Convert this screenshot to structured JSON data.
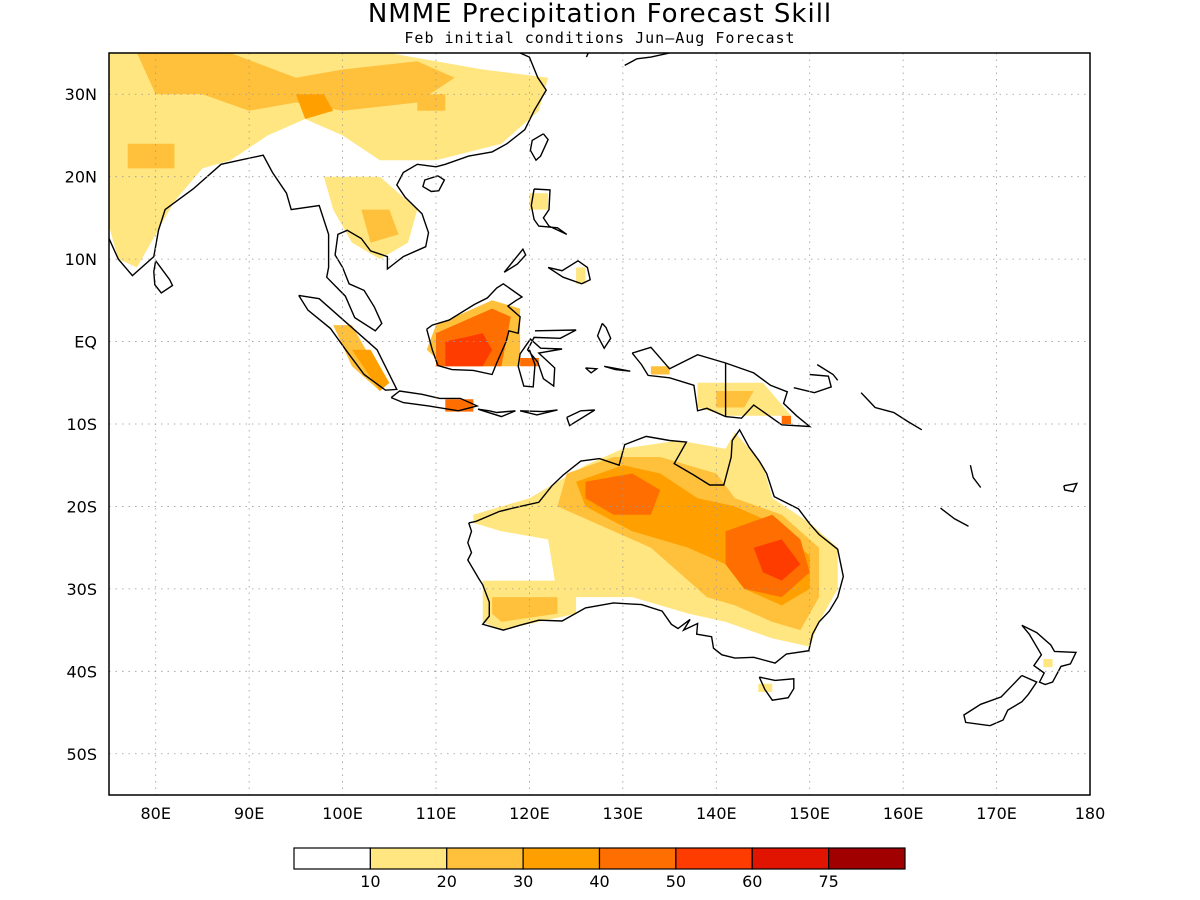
{
  "title": "NMME Precipitation Forecast Skill",
  "subtitle": "Feb initial conditions  Jun–Aug Forecast",
  "map": {
    "lon_range": [
      75,
      180
    ],
    "lat_range": [
      -55,
      35
    ],
    "lat_ticks": [
      {
        "value": 30,
        "label": "30N"
      },
      {
        "value": 20,
        "label": "20N"
      },
      {
        "value": 10,
        "label": "10N"
      },
      {
        "value": 0,
        "label": "EQ"
      },
      {
        "value": -10,
        "label": "10S"
      },
      {
        "value": -20,
        "label": "20S"
      },
      {
        "value": -30,
        "label": "30S"
      },
      {
        "value": -40,
        "label": "40S"
      },
      {
        "value": -50,
        "label": "50S"
      }
    ],
    "lon_ticks": [
      {
        "value": 80,
        "label": "80E"
      },
      {
        "value": 90,
        "label": "90E"
      },
      {
        "value": 100,
        "label": "100E"
      },
      {
        "value": 110,
        "label": "110E"
      },
      {
        "value": 120,
        "label": "120E"
      },
      {
        "value": 130,
        "label": "130E"
      },
      {
        "value": 140,
        "label": "140E"
      },
      {
        "value": 150,
        "label": "150E"
      },
      {
        "value": 160,
        "label": "160E"
      },
      {
        "value": 170,
        "label": "170E"
      },
      {
        "value": 180,
        "label": "180"
      }
    ],
    "grid": true,
    "colors": {
      "band_0": "#ffffff",
      "band_10": "#ffe680",
      "band_20": "#ffc03c",
      "band_30": "#ffa000",
      "band_40": "#ff6e00",
      "band_50": "#ff3c00",
      "band_60": "#e01400",
      "band_75": "#a00000"
    }
  },
  "colorbar": {
    "labels": [
      "10",
      "20",
      "30",
      "40",
      "50",
      "60",
      "75"
    ],
    "colors": [
      "#ffffff",
      "#ffe680",
      "#ffc03c",
      "#ffa000",
      "#ff6e00",
      "#ff3c00",
      "#e01400",
      "#a00000"
    ]
  }
}
